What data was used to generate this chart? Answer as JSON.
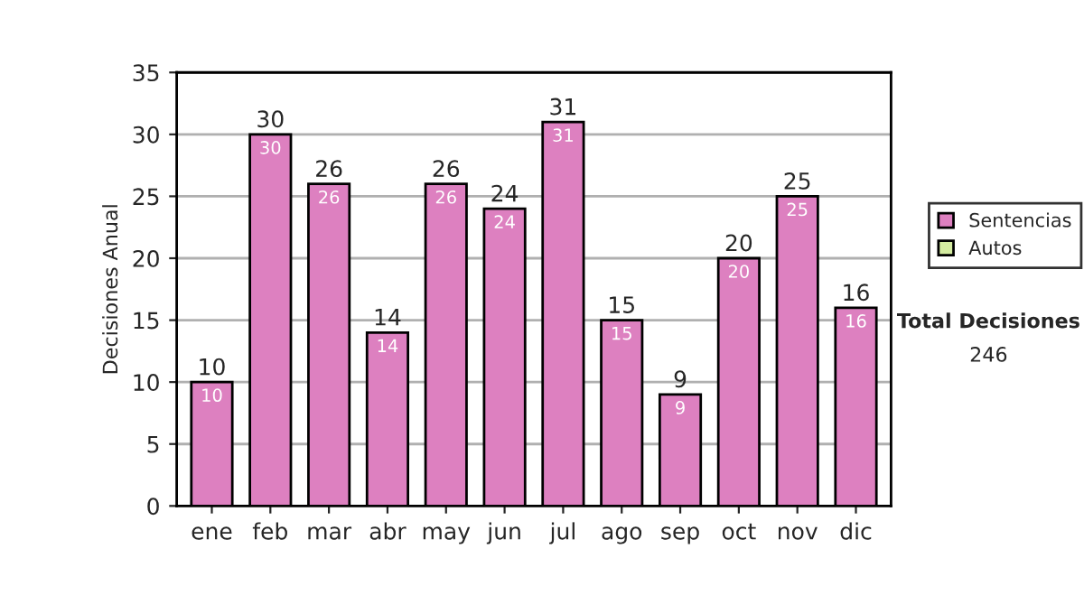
{
  "chart_data": {
    "type": "bar",
    "ylabel": "Decisiones Anual",
    "categories": [
      "ene",
      "feb",
      "mar",
      "abr",
      "may",
      "jun",
      "jul",
      "ago",
      "sep",
      "oct",
      "nov",
      "dic"
    ],
    "stacked": true,
    "series": [
      {
        "name": "Sentencias",
        "color": "#dd80c0",
        "values": [
          10,
          30,
          26,
          14,
          26,
          24,
          31,
          15,
          9,
          20,
          25,
          16
        ],
        "value_labels": [
          "10",
          "30",
          "26",
          "14",
          "26",
          "24",
          "31",
          "15",
          "9",
          "20",
          "25",
          "16"
        ]
      },
      {
        "name": "Autos",
        "color": "#d4eca0",
        "values": [
          null,
          null,
          null,
          null,
          null,
          null,
          null,
          null,
          null,
          null,
          null,
          null
        ]
      }
    ],
    "totals": [
      "10",
      "30",
      "26",
      "14",
      "26",
      "24",
      "31",
      "15",
      "9",
      "20",
      "25",
      "16"
    ],
    "ylim": [
      0,
      35
    ],
    "yticks": [
      0,
      5,
      10,
      15,
      20,
      25,
      30,
      35
    ],
    "grid": "y",
    "legend": "right",
    "annotations": [
      "Total Decisiones",
      "246"
    ]
  }
}
